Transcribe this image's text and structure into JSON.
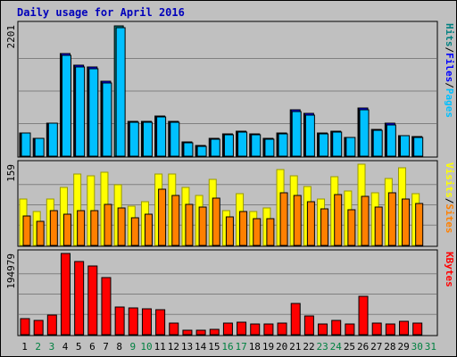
{
  "title": "Daily usage for April 2016",
  "colors": {
    "background": "#c0c0c0",
    "hits": "#008080",
    "files": "#0000ff",
    "pages": "#00c0ff",
    "visits": "#ffff00",
    "sites": "#ff8000",
    "kbytes": "#ff0000",
    "weekend_label": "#008040"
  },
  "chart_data": [
    {
      "type": "bar",
      "name": "hits-files-pages",
      "categories": [
        "1",
        "2",
        "3",
        "4",
        "5",
        "6",
        "7",
        "8",
        "9",
        "10",
        "11",
        "12",
        "13",
        "14",
        "15",
        "16",
        "17",
        "18",
        "19",
        "20",
        "21",
        "22",
        "23",
        "24",
        "25",
        "26",
        "27",
        "28",
        "29",
        "30",
        "31"
      ],
      "ymax_label": "2201",
      "ylim": [
        0,
        2201
      ],
      "series": [
        {
          "name": "Hits",
          "values": [
            387,
            297,
            551,
            1727,
            1538,
            1510,
            1263,
            2201,
            595,
            595,
            679,
            595,
            238,
            177,
            302,
            373,
            419,
            373,
            297,
            387,
            780,
            720,
            387,
            419,
            320,
            810,
            459,
            551,
            351,
            329,
            0
          ]
        },
        {
          "name": "Files",
          "values": [
            387,
            297,
            551,
            1727,
            1538,
            1510,
            1263,
            0,
            595,
            595,
            679,
            595,
            238,
            177,
            302,
            373,
            419,
            373,
            297,
            387,
            780,
            720,
            387,
            419,
            320,
            810,
            459,
            551,
            351,
            329,
            0
          ]
        },
        {
          "name": "Pages",
          "values": [
            387,
            297,
            551,
            1700,
            1510,
            1480,
            1240,
            2175,
            580,
            580,
            660,
            580,
            220,
            160,
            290,
            360,
            400,
            360,
            280,
            370,
            760,
            700,
            370,
            400,
            310,
            790,
            440,
            530,
            340,
            310,
            0
          ]
        }
      ],
      "legend": [
        "Pages",
        "Files",
        "Hits"
      ]
    },
    {
      "type": "bar",
      "name": "visits-sites",
      "categories": [
        "1",
        "2",
        "3",
        "4",
        "5",
        "6",
        "7",
        "8",
        "9",
        "10",
        "11",
        "12",
        "13",
        "14",
        "15",
        "16",
        "17",
        "18",
        "19",
        "20",
        "21",
        "22",
        "23",
        "24",
        "25",
        "26",
        "27",
        "28",
        "29",
        "30",
        "31"
      ],
      "ymax_label": "159",
      "ylim": [
        0,
        159
      ],
      "series": [
        {
          "name": "Visits",
          "values": [
            90,
            66,
            90,
            114,
            140,
            137,
            143,
            119,
            77,
            85,
            140,
            140,
            113,
            97,
            129,
            68,
            102,
            66,
            74,
            149,
            137,
            115,
            90,
            134,
            106,
            159,
            103,
            131,
            152,
            101,
            0
          ]
        },
        {
          "name": "Sites",
          "values": [
            58,
            48,
            68,
            61,
            68,
            69,
            81,
            74,
            54,
            61,
            110,
            98,
            81,
            75,
            93,
            56,
            66,
            53,
            53,
            103,
            98,
            85,
            71,
            100,
            70,
            96,
            76,
            103,
            91,
            82,
            0
          ]
        }
      ],
      "legend": [
        "Sites",
        "Visits"
      ]
    },
    {
      "type": "bar",
      "name": "kbytes",
      "categories": [
        "1",
        "2",
        "3",
        "4",
        "5",
        "6",
        "7",
        "8",
        "9",
        "10",
        "11",
        "12",
        "13",
        "14",
        "15",
        "16",
        "17",
        "18",
        "19",
        "20",
        "21",
        "22",
        "23",
        "24",
        "25",
        "26",
        "27",
        "28",
        "29",
        "30",
        "31"
      ],
      "ymax_label": "194979",
      "ylim": [
        0,
        194979
      ],
      "series": [
        {
          "name": "KBytes",
          "values": [
            38000,
            34000,
            48000,
            194979,
            175000,
            166000,
            137000,
            66000,
            65000,
            63000,
            61000,
            28000,
            10000,
            10000,
            13000,
            28000,
            29000,
            25000,
            25000,
            28000,
            76000,
            44000,
            25000,
            35000,
            25000,
            93000,
            28000,
            25000,
            33000,
            28000,
            0
          ]
        }
      ],
      "legend": [
        "KBytes"
      ]
    }
  ],
  "day_labels": [
    "1",
    "2",
    "3",
    "4",
    "5",
    "6",
    "7",
    "8",
    "9",
    "10",
    "11",
    "12",
    "13",
    "14",
    "15",
    "16",
    "17",
    "18",
    "19",
    "20",
    "21",
    "22",
    "23",
    "24",
    "25",
    "26",
    "27",
    "28",
    "29",
    "30",
    "31"
  ],
  "weekend_days": [
    "2",
    "3",
    "9",
    "10",
    "16",
    "17",
    "23",
    "24",
    "30",
    "31"
  ]
}
